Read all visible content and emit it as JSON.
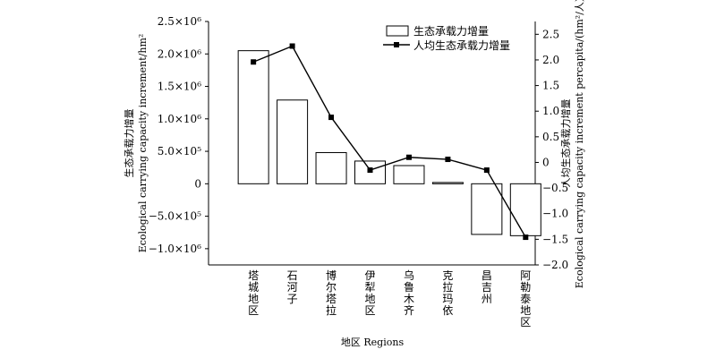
{
  "chart_data": {
    "type": "bar+line",
    "categories": [
      "塔城地区",
      "石河子",
      "博尔塔拉",
      "伊犁地区",
      "乌鲁木齐",
      "克拉玛依",
      "昌吉州",
      "阿勒泰地区"
    ],
    "xlabel": "地区 Regions",
    "series": [
      {
        "name": "生态承载力增量",
        "type": "bar",
        "axis": "left",
        "values": [
          2050000,
          1290000,
          480000,
          350000,
          280000,
          20000,
          -780000,
          -800000
        ]
      },
      {
        "name": "人均生态承载力增量",
        "type": "line",
        "axis": "right",
        "values": [
          1.96,
          2.27,
          0.88,
          -0.15,
          0.1,
          0.06,
          -0.15,
          -1.46
        ]
      }
    ],
    "left_axis": {
      "label_cn": "生态承载力增量",
      "label_en": "Ecological carrying capacity increment/hm²",
      "ylim": [
        -1250000,
        2500000
      ],
      "ticks": [
        2500000,
        2000000,
        1500000,
        1000000,
        500000,
        0,
        -500000,
        -1000000
      ],
      "tick_labels": [
        "2.5×10⁶",
        "2.0×10⁶",
        "1.5×10⁶",
        "1.0×10⁶",
        "5.0×10⁵",
        "0",
        "−5.0×10⁵",
        "−1.0×10⁶"
      ]
    },
    "right_axis": {
      "label_cn": "人均生态承载力增量",
      "label_en": "Ecological carrying capacity increment percapita/(hm²/人)",
      "ylim": [
        -2.0,
        2.75
      ],
      "ticks": [
        2.5,
        2.0,
        1.5,
        1.0,
        0.5,
        0,
        -0.5,
        -1.0,
        -1.5,
        -2.0
      ],
      "tick_labels": [
        "2.5",
        "2.0",
        "1.5",
        "1.0",
        "0.5",
        "0",
        "−0.5",
        "−1.0",
        "−1.5",
        "−2.0"
      ]
    },
    "legend": {
      "placement": "top-right",
      "items": [
        "生态承载力增量",
        "人均生态承载力增量"
      ]
    },
    "grid": false
  }
}
